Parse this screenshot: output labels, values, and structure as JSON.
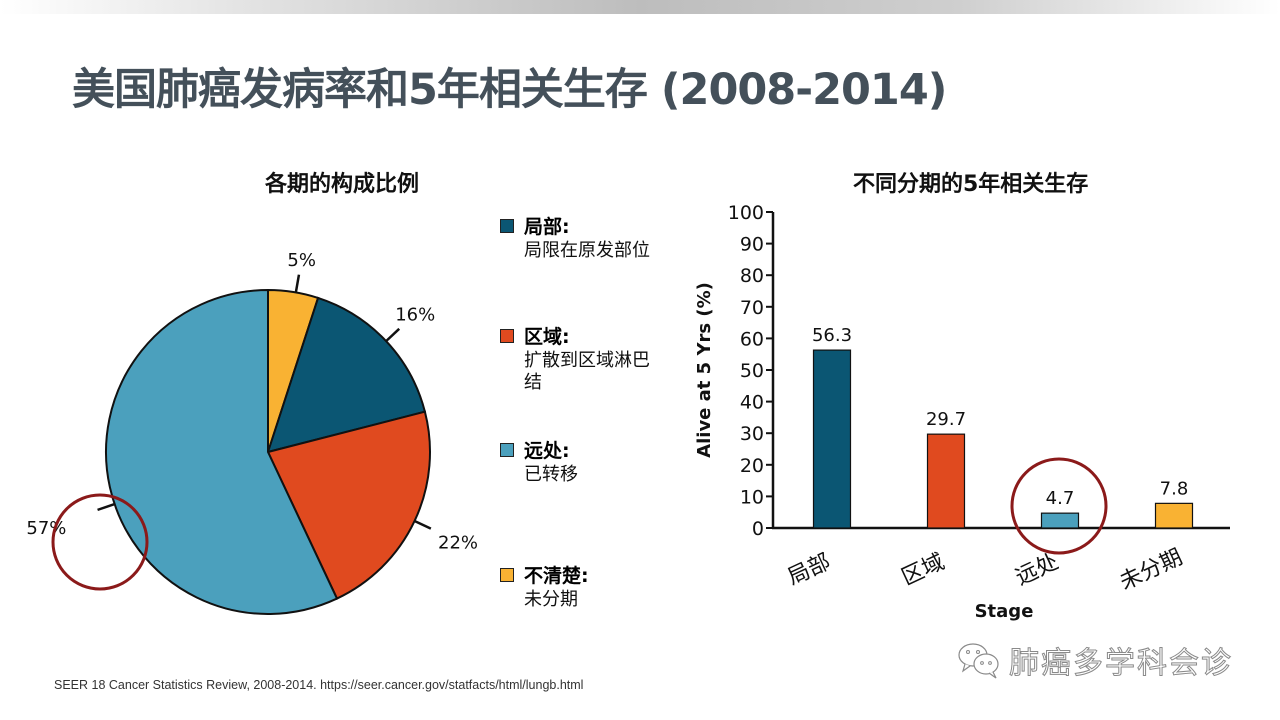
{
  "page": {
    "title": "美国肺癌发病率和5年相关生存 (2008-2014)",
    "source": "SEER 18 Cancer Statistics Review, 2008-2014. https://seer.cancer.gov/statfacts/html/lungb.html",
    "watermark": "肺癌多学科会诊",
    "watermark_icon": "wechat-icon",
    "highlight_color": "#8B1A1A"
  },
  "legend": [
    {
      "key": "local",
      "head": "局部:",
      "desc": "局限在原发部位",
      "color": "#0B5673"
    },
    {
      "key": "regional",
      "head": "区域:",
      "desc": "扩散到区域淋巴结",
      "color": "#E04A1F"
    },
    {
      "key": "distant",
      "head": "远处:",
      "desc": "已转移",
      "color": "#4BA0BD"
    },
    {
      "key": "unknown",
      "head": "不清楚:",
      "desc": "未分期",
      "color": "#F9B233"
    }
  ],
  "chart_data": [
    {
      "type": "pie",
      "title": "各期的构成比例",
      "start": "top",
      "direction": "clockwise",
      "slices": [
        {
          "label": "不清楚 (未分期)",
          "value": 5,
          "display": "5%",
          "color": "#F9B233"
        },
        {
          "label": "局部",
          "value": 16,
          "display": "16%",
          "color": "#0B5673"
        },
        {
          "label": "区域",
          "value": 22,
          "display": "22%",
          "color": "#E04A1F"
        },
        {
          "label": "远处",
          "value": 57,
          "display": "57%",
          "color": "#4BA0BD",
          "highlighted": true
        }
      ]
    },
    {
      "type": "bar",
      "title": "不同分期的5年相关生存",
      "xlabel": "Stage",
      "ylabel": "Alive at 5 Yrs (%)",
      "ylim": [
        0,
        100
      ],
      "yticks": [
        0,
        10,
        20,
        30,
        40,
        50,
        60,
        70,
        80,
        90,
        100
      ],
      "grid": false,
      "categories": [
        "局部",
        "区域",
        "远处",
        "未分期"
      ],
      "values": [
        56.3,
        29.7,
        4.7,
        7.8
      ],
      "value_labels": [
        "56.3",
        "29.7",
        "4.7",
        "7.8"
      ],
      "colors": [
        "#0B5673",
        "#E04A1F",
        "#4BA0BD",
        "#F9B233"
      ],
      "highlighted_category": "远处"
    }
  ]
}
